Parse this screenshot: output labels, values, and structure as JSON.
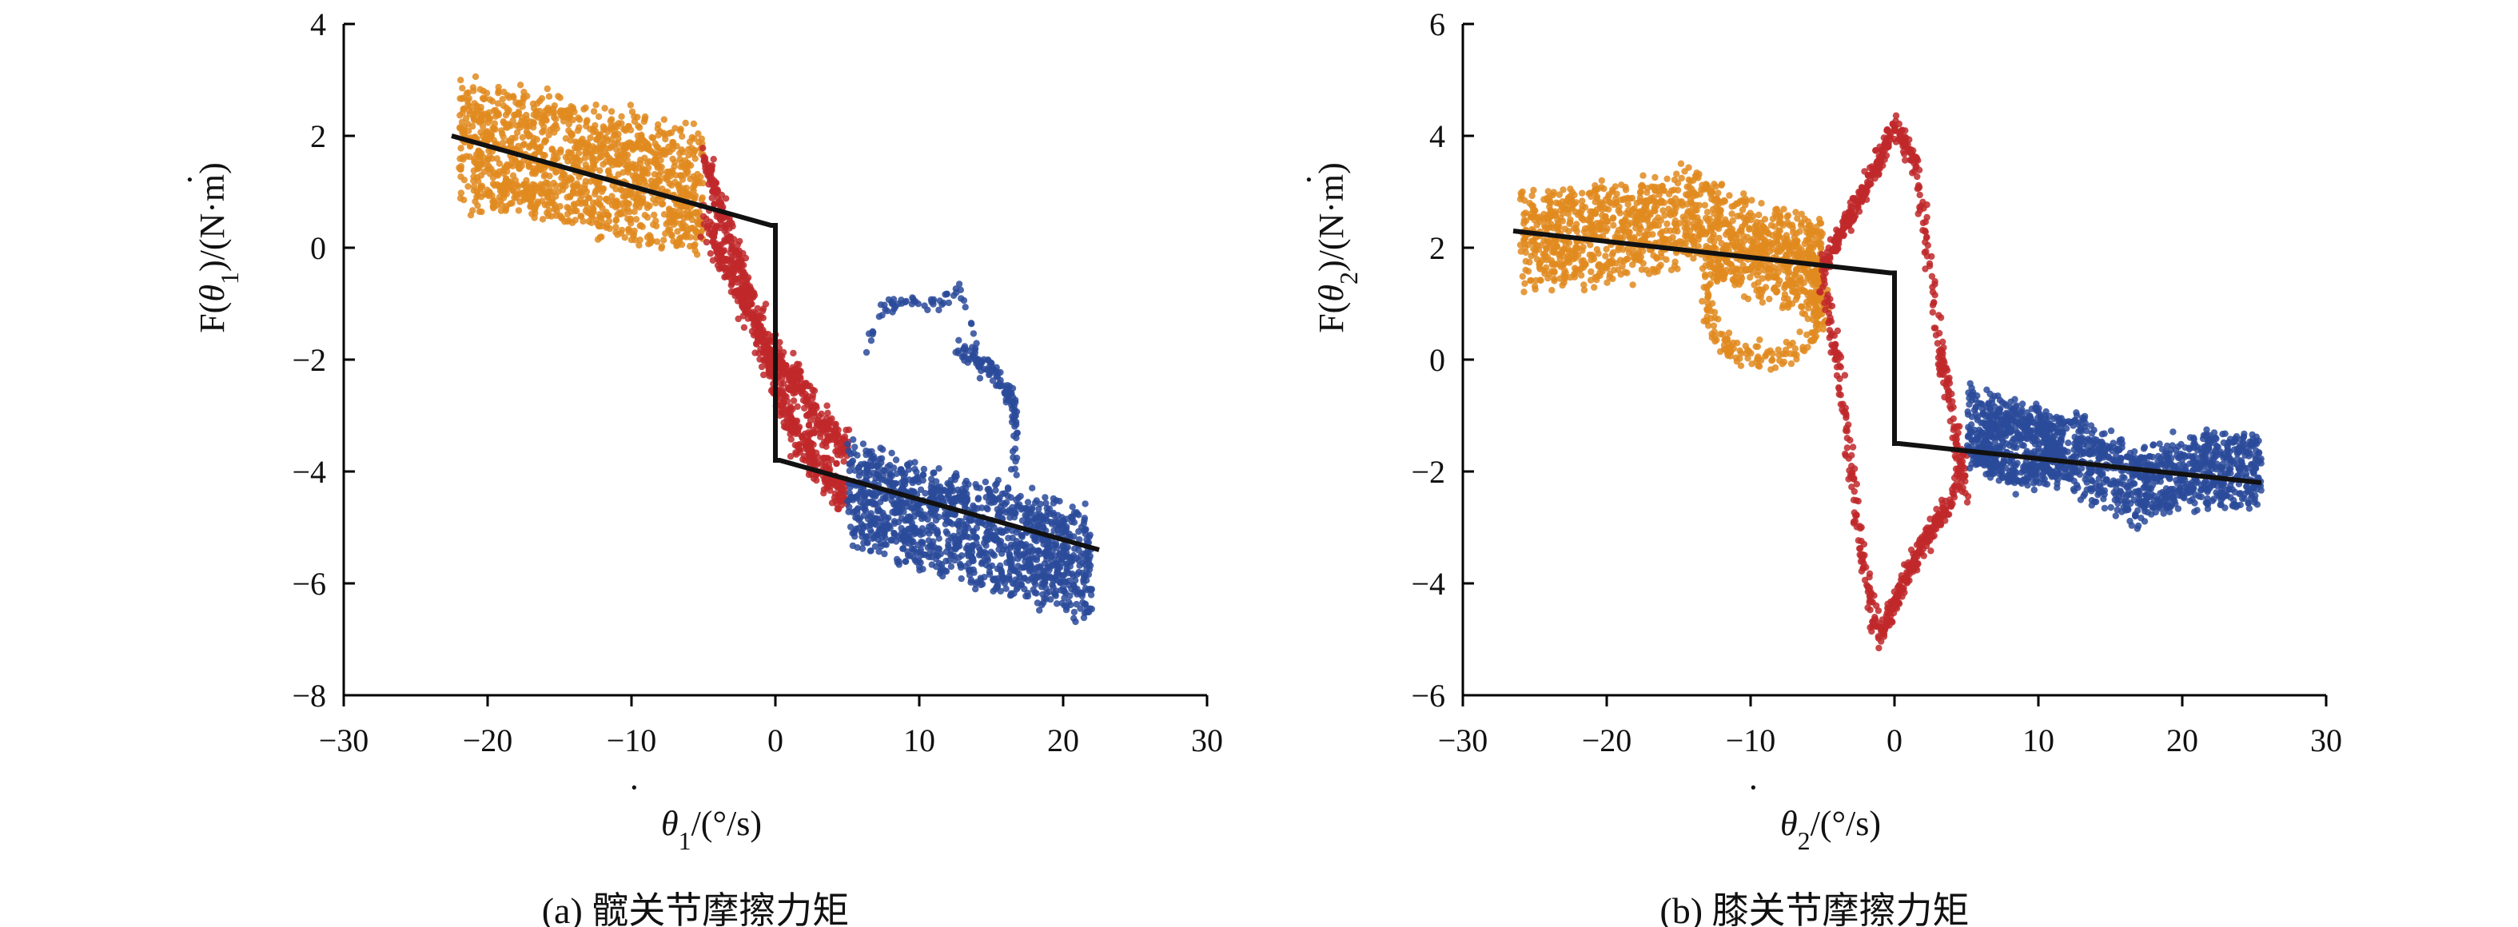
{
  "chart_data": [
    {
      "id": "a",
      "type": "scatter",
      "caption": "(a) 髋关节摩擦力矩",
      "xlabel_symbol": "θ",
      "xlabel_sub": "1",
      "xlabel_unit": "/(°/s)",
      "ylabel_prefix": "F(",
      "ylabel_symbol": "θ",
      "ylabel_sub": "1",
      "ylabel_suffix": ")/(N·m)",
      "xlim": [
        -30,
        30
      ],
      "ylim": [
        -8,
        4
      ],
      "xticks": [
        -30,
        -20,
        -10,
        0,
        10,
        20,
        30
      ],
      "yticks": [
        -8,
        -6,
        -4,
        -2,
        0,
        2,
        4
      ],
      "xtick_labels": [
        "−30",
        "−20",
        "−10",
        "0",
        "10",
        "20",
        "30"
      ],
      "ytick_labels": [
        "−8",
        "−6",
        "−4",
        "−2",
        "0",
        "2",
        "4"
      ],
      "grid": false,
      "colors": {
        "negative": "#e08a1e",
        "transition": "#c0282a",
        "positive": "#2a4a9a",
        "model": "#111111"
      },
      "model_line": [
        [
          -22.5,
          2.0
        ],
        [
          -0.3,
          0.4
        ],
        [
          0.0,
          0.4
        ],
        [
          0.0,
          -3.8
        ],
        [
          0.3,
          -3.8
        ],
        [
          22.5,
          -5.4
        ]
      ],
      "series": [
        {
          "color_key": "negative",
          "x_range": [
            -22,
            -5
          ],
          "center_line": [
            [
              -22,
              1.9
            ],
            [
              -5,
              1.0
            ]
          ],
          "spread": 1.3,
          "count": 1300
        },
        {
          "color_key": "transition",
          "branches": [
            [
              [
                -5,
                1.5
              ],
              [
                -3,
                0.2
              ],
              [
                -1,
                -1.6
              ],
              [
                0,
                -2.5
              ],
              [
                1.5,
                -3.4
              ],
              [
                5,
                -4.5
              ]
            ],
            [
              [
                -5,
                0.5
              ],
              [
                -2.5,
                -0.8
              ],
              [
                0,
                -2.0
              ],
              [
                1.5,
                -2.4
              ],
              [
                3,
                -3.1
              ],
              [
                5,
                -3.6
              ]
            ]
          ],
          "spread": 0.35,
          "count": 900
        },
        {
          "color_key": "positive",
          "x_range": [
            5,
            22
          ],
          "center_line": [
            [
              5,
              -4.4
            ],
            [
              22,
              -5.7
            ]
          ],
          "spread": 1.1,
          "count": 1300,
          "outliers": [
            [
              [
                6,
                -2.0
              ],
              [
                7.5,
                -1.1
              ],
              [
                9,
                -1.0
              ],
              [
                10.5,
                -0.9
              ],
              [
                11.5,
                -1.0
              ],
              [
                12.5,
                -0.7
              ],
              [
                13.5,
                -1.2
              ],
              [
                14,
                -2.0
              ],
              [
                15,
                -2.1
              ],
              [
                15.5,
                -2.4
              ],
              [
                16,
                -2.6
              ],
              [
                16.5,
                -2.8
              ]
            ],
            [
              [
                12.5,
                -1.8
              ],
              [
                14,
                -2.0
              ],
              [
                15.5,
                -2.3
              ],
              [
                16.5,
                -2.7
              ],
              [
                16.8,
                -3.5
              ],
              [
                16.5,
                -4.1
              ]
            ]
          ]
        }
      ]
    },
    {
      "id": "b",
      "type": "scatter",
      "caption": "(b) 膝关节摩擦力矩",
      "xlabel_symbol": "θ",
      "xlabel_sub": "2",
      "xlabel_unit": "/(°/s)",
      "ylabel_prefix": "F(",
      "ylabel_symbol": "θ",
      "ylabel_sub": "2",
      "ylabel_suffix": ")/(N·m)",
      "xlim": [
        -30,
        30
      ],
      "ylim": [
        -6,
        6
      ],
      "xticks": [
        -30,
        -20,
        -10,
        0,
        10,
        20,
        30
      ],
      "yticks": [
        -6,
        -4,
        -2,
        0,
        2,
        4,
        6
      ],
      "xtick_labels": [
        "−30",
        "−20",
        "−10",
        "0",
        "10",
        "20",
        "30"
      ],
      "ytick_labels": [
        "−6",
        "−4",
        "−2",
        "0",
        "2",
        "4",
        "6"
      ],
      "grid": false,
      "colors": {
        "negative": "#e08a1e",
        "transition": "#c0282a",
        "positive": "#2a4a9a",
        "model": "#111111"
      },
      "model_line": [
        [
          -26.5,
          2.3
        ],
        [
          -0.3,
          1.55
        ],
        [
          0.0,
          1.55
        ],
        [
          0.0,
          -1.5
        ],
        [
          0.3,
          -1.5
        ],
        [
          25.5,
          -2.2
        ]
      ],
      "series": [
        {
          "color_key": "negative",
          "x_range": [
            -26,
            -5
          ],
          "center_line": [
            [
              -26,
              2.1
            ],
            [
              -18,
              2.3
            ],
            [
              -14,
              2.6
            ],
            [
              -10,
              2.0
            ],
            [
              -5,
              1.6
            ]
          ],
          "spread": 1.0,
          "count": 1300,
          "loop": {
            "cx": -9,
            "cy": 1.0,
            "rx": 4,
            "ry": 1.0
          }
        },
        {
          "color_key": "transition",
          "branches": [
            [
              [
                -5,
                1.6
              ],
              [
                -3,
                2.6
              ],
              [
                -1,
                3.6
              ],
              [
                0,
                4.2
              ],
              [
                1.5,
                3.5
              ],
              [
                3,
                0.5
              ],
              [
                4,
                -1.0
              ],
              [
                5,
                -2.5
              ]
            ],
            [
              [
                -5,
                1.4
              ],
              [
                -4,
                0.0
              ],
              [
                -3,
                -2.0
              ],
              [
                -2,
                -4.0
              ],
              [
                -1,
                -5.0
              ],
              [
                0,
                -4.3
              ],
              [
                2,
                -3.3
              ],
              [
                4,
                -2.5
              ],
              [
                5,
                -1.6
              ]
            ]
          ],
          "spread": 0.2,
          "count": 800
        },
        {
          "color_key": "positive",
          "x_range": [
            5,
            25.5
          ],
          "center_line": [
            [
              5,
              -1.2
            ],
            [
              12,
              -1.6
            ],
            [
              17,
              -2.3
            ],
            [
              20,
              -2.0
            ],
            [
              25.5,
              -2.0
            ]
          ],
          "spread": 0.8,
          "count": 1300,
          "loop": {
            "cx": 8.5,
            "cy": -1.6,
            "rx": 2.5,
            "ry": 0.5
          }
        }
      ]
    }
  ]
}
